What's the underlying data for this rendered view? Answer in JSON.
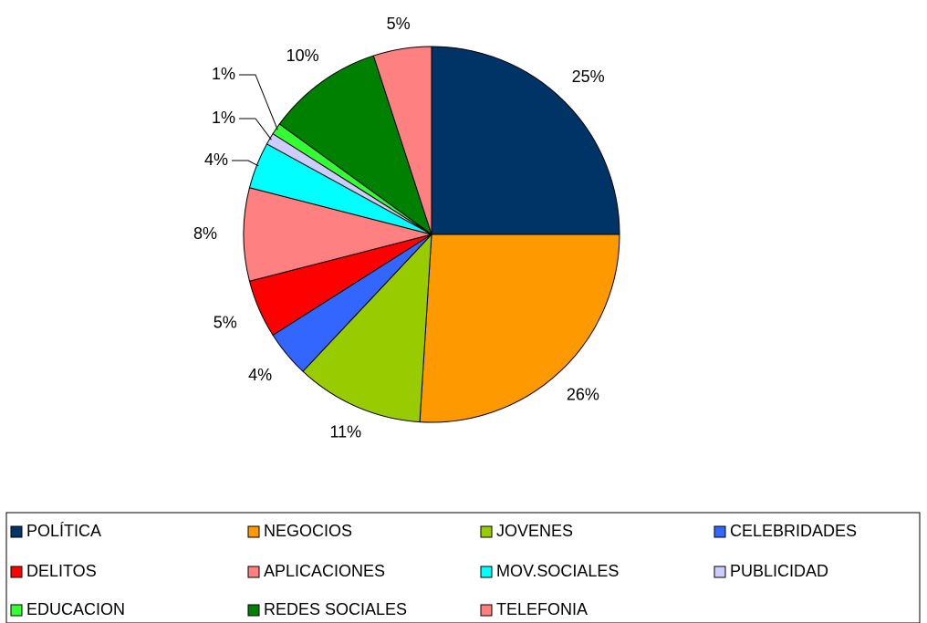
{
  "chart_data": {
    "type": "pie",
    "categories": [
      "POLÍTICA",
      "NEGOCIOS",
      "JOVENES",
      "CELEBRIDADES",
      "DELITOS",
      "APLICACIONES",
      "MOV.SOCIALES",
      "PUBLICIDAD",
      "EDUCACION",
      "REDES SOCIALES",
      "TELEFONIA"
    ],
    "values": [
      25,
      26,
      11,
      4,
      5,
      8,
      4,
      1,
      1,
      10,
      5
    ],
    "value_labels": [
      "25%",
      "26%",
      "11%",
      "4%",
      "5%",
      "8%",
      "4%",
      "1%",
      "1%",
      "10%",
      "5%"
    ],
    "colors": [
      "#003366",
      "#FF9900",
      "#99CC00",
      "#3366FF",
      "#FF0000",
      "#FF8080",
      "#00FFFF",
      "#CCCCFF",
      "#33FF33",
      "#008000",
      "#FF8080"
    ],
    "legend": "bottom"
  }
}
